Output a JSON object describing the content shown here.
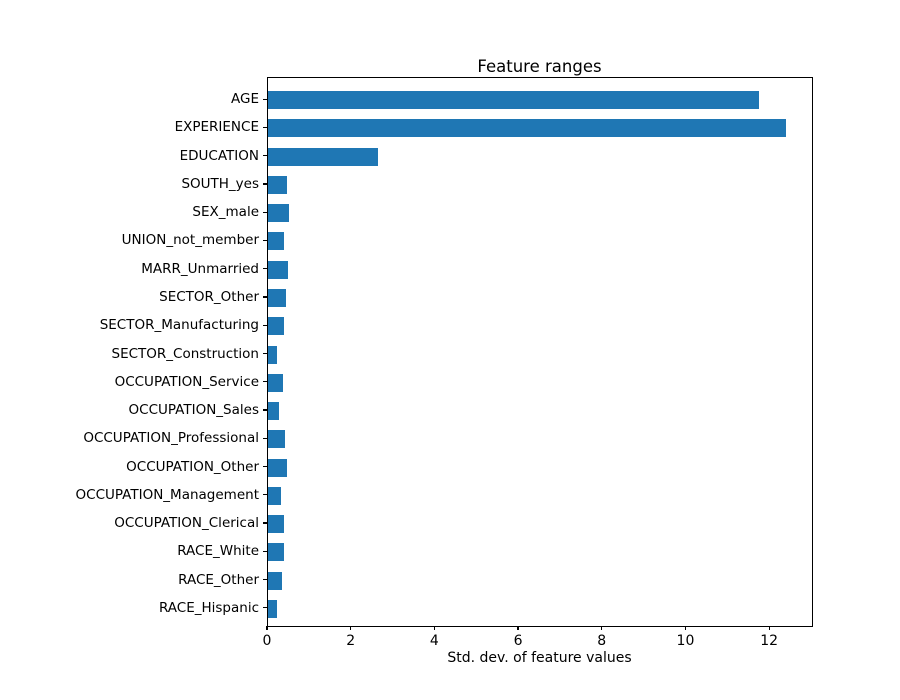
{
  "chart_data": {
    "type": "bar",
    "orientation": "horizontal",
    "title": "Feature ranges",
    "xlabel": "Std. dev. of feature values",
    "ylabel": "",
    "categories": [
      "AGE",
      "EXPERIENCE",
      "EDUCATION",
      "SOUTH_yes",
      "SEX_male",
      "UNION_not_member",
      "MARR_Unmarried",
      "SECTOR_Other",
      "SECTOR_Manufacturing",
      "SECTOR_Construction",
      "OCCUPATION_Service",
      "OCCUPATION_Sales",
      "OCCUPATION_Professional",
      "OCCUPATION_Other",
      "OCCUPATION_Management",
      "OCCUPATION_Clerical",
      "RACE_White",
      "RACE_Other",
      "RACE_Hispanic"
    ],
    "values": [
      11.73,
      12.38,
      2.62,
      0.46,
      0.5,
      0.38,
      0.48,
      0.42,
      0.39,
      0.21,
      0.36,
      0.26,
      0.4,
      0.46,
      0.3,
      0.39,
      0.38,
      0.33,
      0.22
    ],
    "xlim": [
      0,
      13
    ],
    "xticks": [
      0,
      2,
      4,
      6,
      8,
      10,
      12
    ],
    "bar_color": "#1f77b4",
    "grid": false,
    "legend": false
  }
}
